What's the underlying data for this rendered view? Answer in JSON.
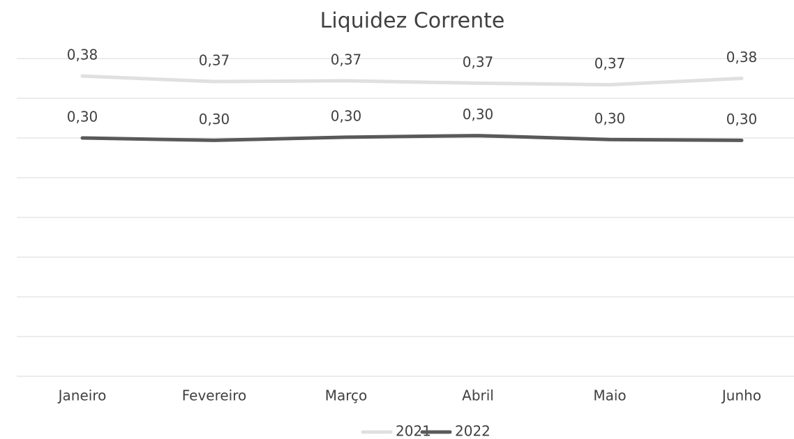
{
  "chart_data": {
    "type": "line",
    "title": "Liquidez Corrente",
    "categories": [
      "Janeiro",
      "Fevereiro",
      "Março",
      "Abril",
      "Maio",
      "Junho"
    ],
    "series": [
      {
        "name": "2021",
        "color": "#e0e0e0",
        "values": [
          0.378,
          0.371,
          0.372,
          0.369,
          0.367,
          0.375
        ],
        "value_labels": [
          "0,38",
          "0,37",
          "0,37",
          "0,37",
          "0,37",
          "0,38"
        ]
      },
      {
        "name": "2022",
        "color": "#595959",
        "values": [
          0.3,
          0.297,
          0.301,
          0.303,
          0.298,
          0.297
        ],
        "value_labels": [
          "0,30",
          "0,30",
          "0,30",
          "0,30",
          "0,30",
          "0,30"
        ]
      }
    ],
    "ylim": [
      0,
      0.4
    ],
    "yticks": [
      0,
      0.05,
      0.1,
      0.15,
      0.2,
      0.25,
      0.3,
      0.35,
      0.4
    ],
    "grid": true,
    "legend": "bottom"
  }
}
